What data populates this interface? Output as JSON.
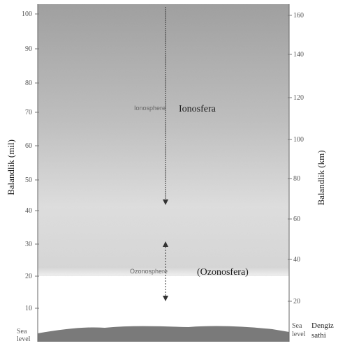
{
  "diagram": {
    "left_axis": {
      "title": "Balandlik (mil)",
      "ticks": [
        "100",
        "90",
        "80",
        "70",
        "60",
        "50",
        "40",
        "30",
        "20",
        "10"
      ],
      "bottom_label_line1": "Sea",
      "bottom_label_line2": "level"
    },
    "right_axis": {
      "title": "Balandlik (km)",
      "ticks": [
        "160",
        "140",
        "120",
        "100",
        "80",
        "60",
        "40",
        "20"
      ],
      "bottom_label_line1": "Sea",
      "bottom_label_line2": "level",
      "bottom_label_uz_line1": "Dengiz",
      "bottom_label_uz_line2": "sathi"
    },
    "layers": {
      "ionosphere_en": "Ionosphere",
      "ionosphere_uz": "Ionosfera",
      "ozonosphere_en": "Ozonosphere",
      "ozonosphere_uz": "(Ozonosfera)"
    },
    "colors": {
      "sky_dark": "#9a9a9a",
      "sky_light": "#f2f2f2",
      "ground": "#7a7a7a",
      "arrow": "#333333"
    }
  }
}
